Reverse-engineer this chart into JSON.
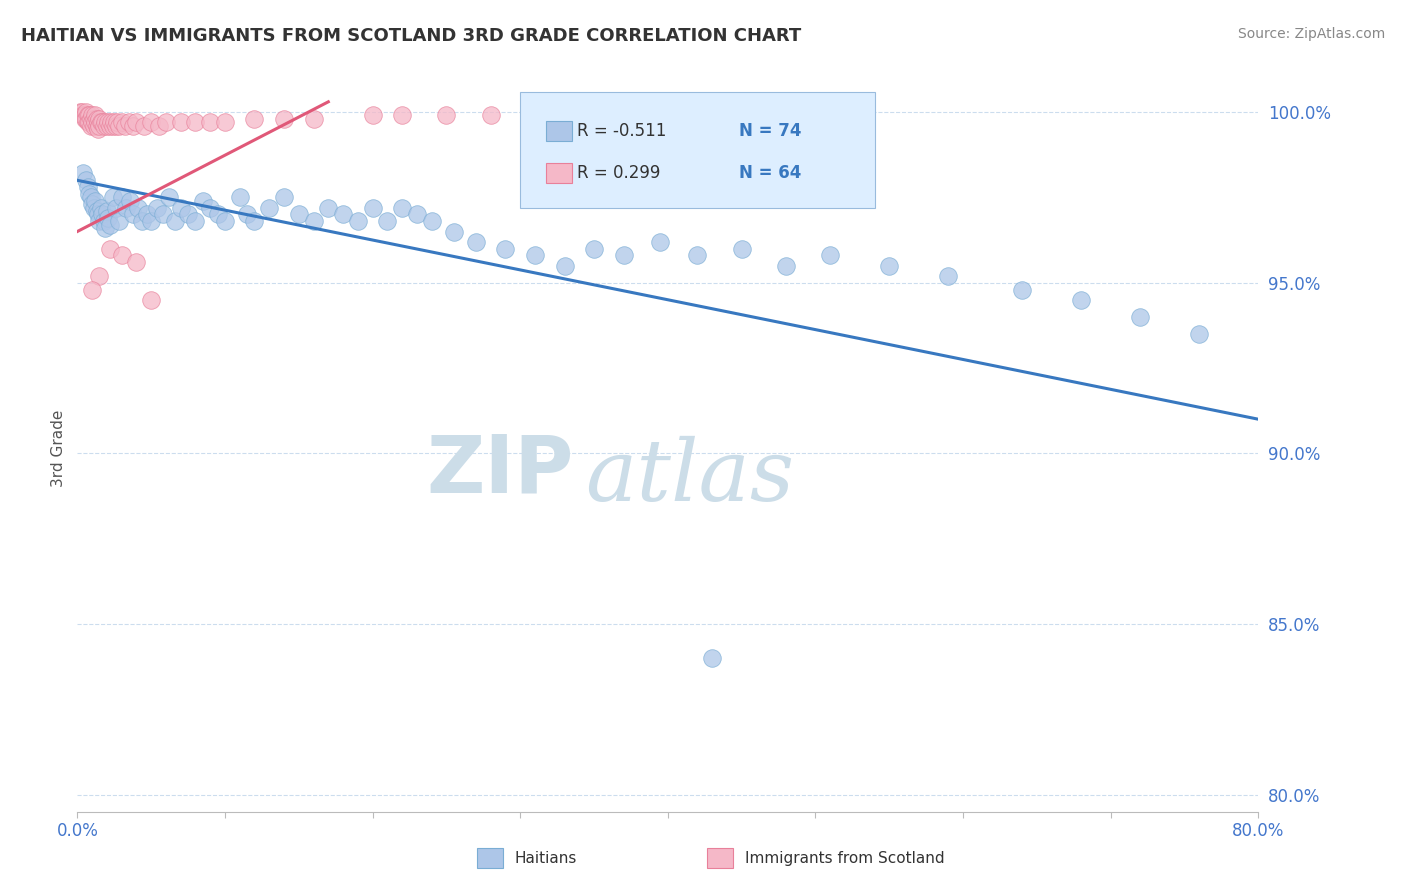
{
  "title": "HAITIAN VS IMMIGRANTS FROM SCOTLAND 3RD GRADE CORRELATION CHART",
  "source": "Source: ZipAtlas.com",
  "ylabel": "3rd Grade",
  "watermark_zip": "ZIP",
  "watermark_atlas": "atlas",
  "x_min": 0.0,
  "x_max": 0.8,
  "y_min": 0.795,
  "y_max": 1.008,
  "x_ticks": [
    0.0,
    0.1,
    0.2,
    0.3,
    0.4,
    0.5,
    0.6,
    0.7,
    0.8
  ],
  "y_ticks": [
    0.8,
    0.85,
    0.9,
    0.95,
    1.0
  ],
  "y_tick_labels": [
    "80.0%",
    "85.0%",
    "90.0%",
    "95.0%",
    "100.0%"
  ],
  "legend_r1": "R = -0.511",
  "legend_n1": "N = 74",
  "legend_r2": "R = 0.299",
  "legend_n2": "N = 64",
  "series1_color": "#adc6e8",
  "series2_color": "#f5b8c8",
  "series1_edgecolor": "#7aadd4",
  "series2_edgecolor": "#e8809a",
  "line1_color": "#3878c0",
  "line2_color": "#e05878",
  "blue_scatter_x": [
    0.004,
    0.006,
    0.007,
    0.008,
    0.009,
    0.01,
    0.011,
    0.012,
    0.013,
    0.014,
    0.015,
    0.016,
    0.017,
    0.018,
    0.019,
    0.02,
    0.021,
    0.022,
    0.024,
    0.026,
    0.028,
    0.03,
    0.033,
    0.036,
    0.038,
    0.041,
    0.044,
    0.047,
    0.05,
    0.054,
    0.058,
    0.062,
    0.066,
    0.07,
    0.075,
    0.08,
    0.085,
    0.09,
    0.095,
    0.1,
    0.11,
    0.115,
    0.12,
    0.13,
    0.14,
    0.15,
    0.16,
    0.17,
    0.18,
    0.19,
    0.2,
    0.21,
    0.22,
    0.23,
    0.24,
    0.255,
    0.27,
    0.29,
    0.31,
    0.33,
    0.35,
    0.37,
    0.395,
    0.42,
    0.45,
    0.48,
    0.51,
    0.55,
    0.59,
    0.64,
    0.68,
    0.72,
    0.76,
    0.43
  ],
  "blue_scatter_y": [
    0.982,
    0.98,
    0.978,
    0.976,
    0.975,
    0.973,
    0.972,
    0.974,
    0.971,
    0.97,
    0.968,
    0.972,
    0.97,
    0.968,
    0.966,
    0.971,
    0.969,
    0.967,
    0.975,
    0.972,
    0.968,
    0.975,
    0.972,
    0.974,
    0.97,
    0.972,
    0.968,
    0.97,
    0.968,
    0.972,
    0.97,
    0.975,
    0.968,
    0.972,
    0.97,
    0.968,
    0.974,
    0.972,
    0.97,
    0.968,
    0.975,
    0.97,
    0.968,
    0.972,
    0.975,
    0.97,
    0.968,
    0.972,
    0.97,
    0.968,
    0.972,
    0.968,
    0.972,
    0.97,
    0.968,
    0.965,
    0.962,
    0.96,
    0.958,
    0.955,
    0.96,
    0.958,
    0.962,
    0.958,
    0.96,
    0.955,
    0.958,
    0.955,
    0.952,
    0.948,
    0.945,
    0.94,
    0.935,
    0.84
  ],
  "pink_scatter_x": [
    0.002,
    0.003,
    0.004,
    0.005,
    0.005,
    0.006,
    0.006,
    0.007,
    0.007,
    0.008,
    0.008,
    0.009,
    0.009,
    0.01,
    0.01,
    0.011,
    0.011,
    0.012,
    0.012,
    0.013,
    0.013,
    0.014,
    0.014,
    0.015,
    0.015,
    0.016,
    0.017,
    0.018,
    0.019,
    0.02,
    0.021,
    0.022,
    0.023,
    0.024,
    0.025,
    0.026,
    0.027,
    0.028,
    0.03,
    0.032,
    0.035,
    0.038,
    0.04,
    0.045,
    0.05,
    0.055,
    0.06,
    0.07,
    0.08,
    0.09,
    0.1,
    0.12,
    0.14,
    0.16,
    0.2,
    0.22,
    0.25,
    0.28,
    0.022,
    0.03,
    0.04,
    0.015,
    0.01,
    0.05
  ],
  "pink_scatter_y": [
    1.0,
    1.0,
    0.999,
    0.999,
    0.998,
    1.0,
    0.998,
    0.999,
    0.997,
    0.999,
    0.997,
    0.998,
    0.996,
    0.999,
    0.997,
    0.998,
    0.996,
    0.999,
    0.997,
    0.998,
    0.996,
    0.997,
    0.995,
    0.998,
    0.996,
    0.997,
    0.997,
    0.996,
    0.997,
    0.996,
    0.997,
    0.996,
    0.997,
    0.996,
    0.997,
    0.996,
    0.997,
    0.996,
    0.997,
    0.996,
    0.997,
    0.996,
    0.997,
    0.996,
    0.997,
    0.996,
    0.997,
    0.997,
    0.997,
    0.997,
    0.997,
    0.998,
    0.998,
    0.998,
    0.999,
    0.999,
    0.999,
    0.999,
    0.96,
    0.958,
    0.956,
    0.952,
    0.948,
    0.945
  ],
  "blue_line_x": [
    0.0,
    0.8
  ],
  "blue_line_y": [
    0.98,
    0.91
  ],
  "pink_line_x": [
    0.0,
    0.17
  ],
  "pink_line_y": [
    0.965,
    1.003
  ],
  "legend_box_color": "#ddeeff",
  "legend_border_color": "#99bbdd",
  "grid_color": "#ccddee",
  "background_color": "#ffffff",
  "watermark_color": "#ccdde8",
  "title_color": "#333333",
  "axis_label_color": "#555555",
  "tick_color_blue": "#4477cc",
  "source_color": "#888888"
}
